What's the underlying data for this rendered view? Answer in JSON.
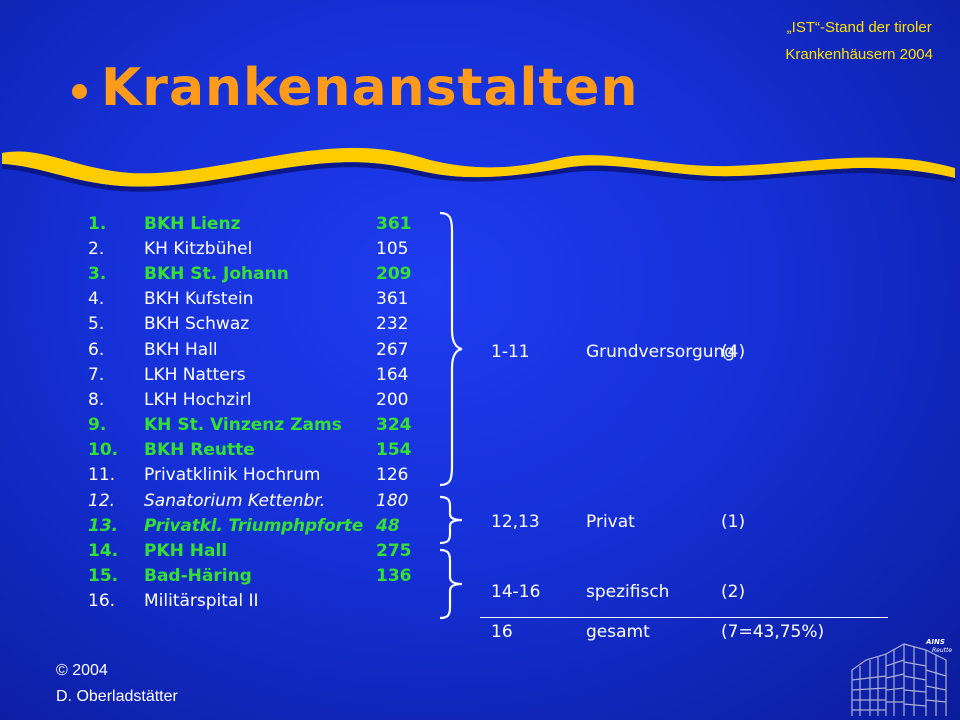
{
  "header": {
    "note_line1": "„IST“-Stand der tiroler",
    "note_line2": "Krankenhäusern 2004",
    "title": "Krankenanstalten"
  },
  "hospitals": [
    {
      "num": "1.",
      "name": "BKH Lienz",
      "beds": "361",
      "style": "green"
    },
    {
      "num": "2.",
      "name": "KH Kitzbühel",
      "beds": "105",
      "style": "normal"
    },
    {
      "num": "3.",
      "name": "BKH St. Johann",
      "beds": "209",
      "style": "green"
    },
    {
      "num": "4.",
      "name": "BKH Kufstein",
      "beds": "361",
      "style": "normal"
    },
    {
      "num": "5.",
      "name": "BKH Schwaz",
      "beds": "232",
      "style": "normal"
    },
    {
      "num": "6.",
      "name": "BKH Hall",
      "beds": "267",
      "style": "normal"
    },
    {
      "num": "7.",
      "name": "LKH Natters",
      "beds": "164",
      "style": "normal"
    },
    {
      "num": "8.",
      "name": "LKH Hochzirl",
      "beds": "200",
      "style": "normal"
    },
    {
      "num": "9.",
      "name": "KH St. Vinzenz Zams",
      "beds": "324",
      "style": "green"
    },
    {
      "num": "10.",
      "name": "BKH Reutte",
      "beds": "154",
      "style": "green"
    },
    {
      "num": "11.",
      "name": "Privatklinik Hochrum",
      "beds": "126",
      "style": "normal"
    },
    {
      "num": "12.",
      "name": "Sanatorium Kettenbr.",
      "beds": "180",
      "style": "italic"
    },
    {
      "num": "13.",
      "name": "Privatkl. Triumphpforte",
      "beds": "48",
      "style": "green-italic"
    },
    {
      "num": "14.",
      "name": "PKH Hall",
      "beds": "275",
      "style": "green"
    },
    {
      "num": "15.",
      "name": "Bad-Häring",
      "beds": "136",
      "style": "green"
    },
    {
      "num": "16.",
      "name": "Militärspital  II",
      "beds": "",
      "style": "normal"
    }
  ],
  "summary": [
    {
      "range": "1-11",
      "label": "Grundversorgung",
      "count": "(4)"
    },
    {
      "range": "12,13",
      "label": "Privat",
      "count": "(1)"
    },
    {
      "range": "14-16",
      "label": "spezifisch",
      "count": "(2)"
    },
    {
      "range": "16",
      "label": "gesamt",
      "count": "(7=43,75%)"
    }
  ],
  "footer": {
    "copyright": "© 2004",
    "author": "D. Oberladstätter",
    "logo_text_1": "AINS",
    "logo_text_2": "Reutte"
  },
  "colors": {
    "background": "#1530d6",
    "title": "#ff9a1a",
    "note": "#ffe000",
    "highlight": "#33e033",
    "swoosh": "#ffcc00"
  }
}
